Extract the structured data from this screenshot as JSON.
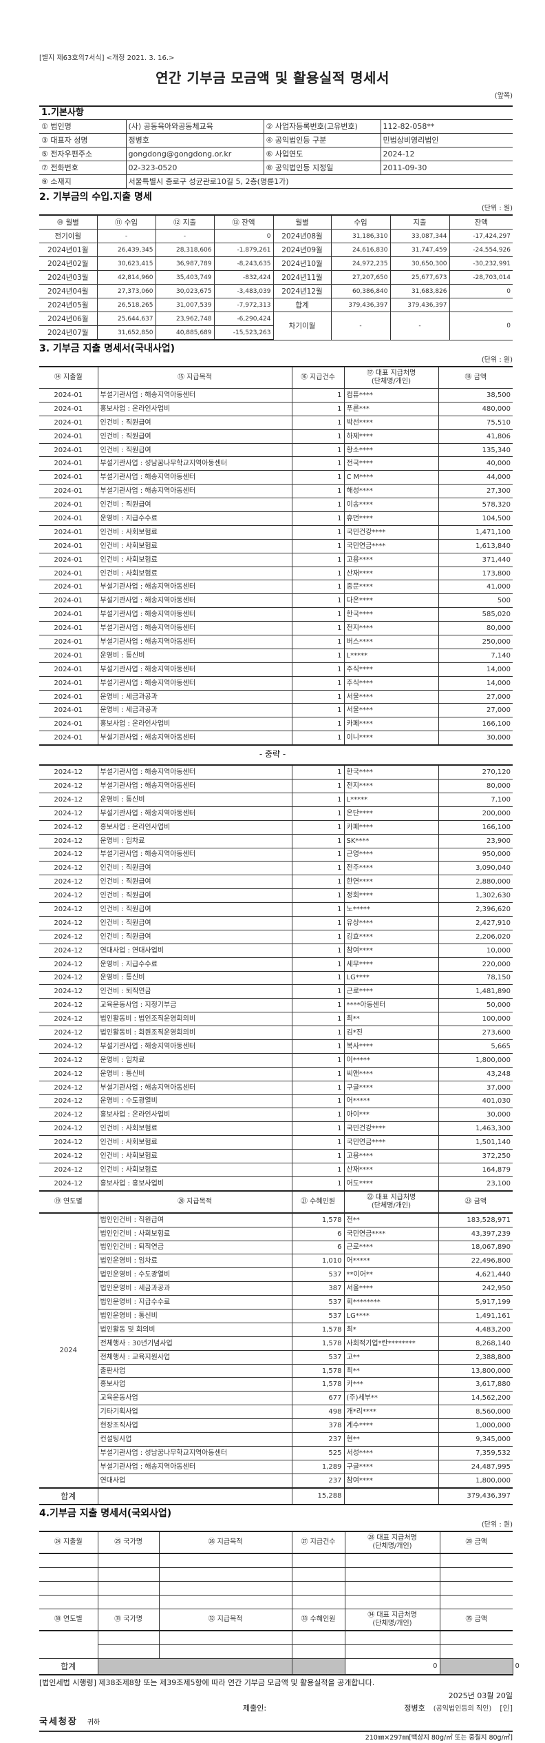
{
  "form_label": "[별지 제63호의7서식] <개정 2021. 3. 16.>",
  "title": "연간 기부금 모금액 및 활용실적 명세서",
  "page_side": "(앞쪽)",
  "unit": "(단위 : 원)",
  "section1": {
    "heading": "1.기본사항",
    "rows": [
      [
        "① 법인명",
        "(사) 공동육아와공동체교육",
        "② 사업자등록번호(고유번호)",
        "112-82-058**"
      ],
      [
        "③ 대표자 성명",
        "정병호",
        "④ 공익법인등 구분",
        "민법상비영리법인"
      ],
      [
        "⑤ 전자우편주소",
        "gongdong@gongdong.or.kr",
        "⑥ 사업연도",
        "2024-12"
      ],
      [
        "⑦ 전화번호",
        "02-323-0520",
        "⑧ 공익법인등 지정일",
        "2011-09-30"
      ]
    ],
    "location": [
      "⑨ 소재지",
      "서울특별시 종로구 성균관로10길 5, 2층(명륜1가)"
    ]
  },
  "section2": {
    "heading": "2. 기부금의 수입.지출 명세",
    "headers": [
      "⑩ 월별",
      "⑪ 수입",
      "⑫ 지출",
      "⑬ 잔액",
      "월별",
      "수입",
      "지출",
      "잔액"
    ],
    "left": [
      [
        "전기이월",
        "-",
        "-",
        "0"
      ],
      [
        "2024년01월",
        "26,439,345",
        "28,318,606",
        "-1,879,261"
      ],
      [
        "2024년02월",
        "30,623,415",
        "36,987,789",
        "-8,243,635"
      ],
      [
        "2024년03월",
        "42,814,960",
        "35,403,749",
        "-832,424"
      ],
      [
        "2024년04월",
        "27,373,060",
        "30,023,675",
        "-3,483,039"
      ],
      [
        "2024년05월",
        "26,518,265",
        "31,007,539",
        "-7,972,313"
      ],
      [
        "2024년06월",
        "25,644,637",
        "23,962,748",
        "-6,290,424"
      ],
      [
        "2024년07월",
        "31,652,850",
        "40,885,689",
        "-15,523,263"
      ]
    ],
    "right": [
      [
        "2024년08월",
        "31,186,310",
        "33,087,344",
        "-17,424,297"
      ],
      [
        "2024년09월",
        "24,616,830",
        "31,747,459",
        "-24,554,926"
      ],
      [
        "2024년10월",
        "24,972,235",
        "30,650,300",
        "-30,232,991"
      ],
      [
        "2024년11월",
        "27,207,650",
        "25,677,673",
        "-28,703,014"
      ],
      [
        "2024년12월",
        "60,386,840",
        "31,683,826",
        "0"
      ]
    ],
    "total": [
      "합계",
      "379,436,397",
      "379,436,397",
      ""
    ],
    "carry_forward": [
      "차기이월",
      "-",
      "-",
      "0"
    ]
  },
  "section3": {
    "heading": "3. 기부금 지출 명세서(국내사업)",
    "headers": [
      "⑭ 지출월",
      "⑮ 지급목적",
      "⑯ 지급건수",
      "⑰ 대표 지급처명\n(단체명/개인)",
      "⑱ 금액"
    ],
    "rows_part1": [
      [
        "2024-01",
        "부설기관사업 : 해송지역아동센터",
        "1",
        "컴퓨****",
        "38,500"
      ],
      [
        "2024-01",
        "홍보사업 : 온라인사업비",
        "1",
        "푸른***",
        "480,000"
      ],
      [
        "2024-01",
        "인건비 : 직원급여",
        "1",
        "박선****",
        "75,510"
      ],
      [
        "2024-01",
        "인건비 : 직원급여",
        "1",
        "하제****",
        "41,806"
      ],
      [
        "2024-01",
        "인건비 : 직원급여",
        "1",
        "황소****",
        "135,340"
      ],
      [
        "2024-01",
        "부설기관사업 : 성남꿈나무학교지역아동센터",
        "1",
        "전국****",
        "40,000"
      ],
      [
        "2024-01",
        "부설기관사업 : 해송지역아동센터",
        "1",
        "C M****",
        "44,000"
      ],
      [
        "2024-01",
        "부설기관사업 : 해송지역아동센터",
        "1",
        "해성****",
        "27,300"
      ],
      [
        "2024-01",
        "인건비 : 직원급여",
        "1",
        "이송****",
        "578,320"
      ],
      [
        "2024-01",
        "운영비 : 지급수수료",
        "1",
        "휴먼****",
        "104,500"
      ],
      [
        "2024-01",
        "인건비 : 사회보험료",
        "1",
        "국민건강****",
        "1,471,100"
      ],
      [
        "2024-01",
        "인건비 : 사회보험료",
        "1",
        "국민연금****",
        "1,613,840"
      ],
      [
        "2024-01",
        "인건비 : 사회보험료",
        "1",
        "고용****",
        "371,440"
      ],
      [
        "2024-01",
        "인건비 : 사회보험료",
        "1",
        "산재****",
        "173,800"
      ],
      [
        "2024-01",
        "부설기관사업 : 해송지역아동센터",
        "1",
        "중문****",
        "41,000"
      ],
      [
        "2024-01",
        "부설기관사업 : 해송지역아동센터",
        "1",
        "다온****",
        "500"
      ],
      [
        "2024-01",
        "부설기관사업 : 해송지역아동센터",
        "1",
        "한국****",
        "585,020"
      ],
      [
        "2024-01",
        "부설기관사업 : 해송지역아동센터",
        "1",
        "전지****",
        "80,000"
      ],
      [
        "2024-01",
        "부설기관사업 : 해송지역아동센터",
        "1",
        "버스****",
        "250,000"
      ],
      [
        "2024-01",
        "운영비 : 통신비",
        "1",
        "L*****",
        "7,140"
      ],
      [
        "2024-01",
        "부설기관사업 : 해송지역아동센터",
        "1",
        "주식****",
        "14,000"
      ],
      [
        "2024-01",
        "부설기관사업 : 해송지역아동센터",
        "1",
        "주식****",
        "14,000"
      ],
      [
        "2024-01",
        "운영비 : 세금과공과",
        "1",
        "서울****",
        "27,000"
      ],
      [
        "2024-01",
        "운영비 : 세금과공과",
        "1",
        "서울****",
        "27,000"
      ],
      [
        "2024-01",
        "홍보사업 : 온라인사업비",
        "1",
        "카페****",
        "166,100"
      ],
      [
        "2024-01",
        "부설기관사업 : 해송지역아동센터",
        "1",
        "이니****",
        "30,000"
      ]
    ],
    "ellipsis": "- 중략 -",
    "rows_part2": [
      [
        "2024-12",
        "부설기관사업 : 해송지역아동센터",
        "1",
        "한국****",
        "270,120"
      ],
      [
        "2024-12",
        "부설기관사업 : 해송지역아동센터",
        "1",
        "전지****",
        "80,000"
      ],
      [
        "2024-12",
        "운영비 : 통신비",
        "1",
        "L*****",
        "7,100"
      ],
      [
        "2024-12",
        "부설기관사업 : 해송지역아동센터",
        "1",
        "온단****",
        "200,000"
      ],
      [
        "2024-12",
        "홍보사업 : 온라인사업비",
        "1",
        "카페****",
        "166,100"
      ],
      [
        "2024-12",
        "운영비 : 임차료",
        "1",
        "SK****",
        "23,900"
      ],
      [
        "2024-12",
        "부설기관사업 : 해송지역아동센터",
        "1",
        "근영****",
        "950,000"
      ],
      [
        "2024-12",
        "인건비 : 직원급여",
        "1",
        "전주****",
        "3,090,040"
      ],
      [
        "2024-12",
        "인건비 : 직원급여",
        "1",
        "한연****",
        "2,880,000"
      ],
      [
        "2024-12",
        "인건비 : 직원급여",
        "1",
        "정회****",
        "1,302,630"
      ],
      [
        "2024-12",
        "인건비 : 직원급여",
        "1",
        "노*****",
        "2,396,620"
      ],
      [
        "2024-12",
        "인건비 : 직원급여",
        "1",
        "유상****",
        "2,427,910"
      ],
      [
        "2024-12",
        "인건비 : 직원급여",
        "1",
        "김효****",
        "2,206,020"
      ],
      [
        "2024-12",
        "연대사업 : 연대사업비",
        "1",
        "참여****",
        "10,000"
      ],
      [
        "2024-12",
        "운영비 : 지급수수료",
        "1",
        "세무****",
        "220,000"
      ],
      [
        "2024-12",
        "운영비 : 통신비",
        "1",
        "LG****",
        "78,150"
      ],
      [
        "2024-12",
        "인건비 : 퇴직연금",
        "1",
        "근로****",
        "1,481,890"
      ],
      [
        "2024-12",
        "교육운동사업 : 지정기부금",
        "1",
        "****아동센터",
        "50,000"
      ],
      [
        "2024-12",
        "법인활동비 : 법인조직운영회의비",
        "1",
        "최**",
        "100,000"
      ],
      [
        "2024-12",
        "법인활동비 : 회원조직운영회의비",
        "1",
        "김*진",
        "273,600"
      ],
      [
        "2024-12",
        "부설기관사업 : 해송지역아동센터",
        "1",
        "복사****",
        "5,665"
      ],
      [
        "2024-12",
        "운영비 : 임차료",
        "1",
        "어*****",
        "1,800,000"
      ],
      [
        "2024-12",
        "운영비 : 통신비",
        "1",
        "씨앤****",
        "43,248"
      ],
      [
        "2024-12",
        "부설기관사업 : 해송지역아동센터",
        "1",
        "구글****",
        "37,000"
      ],
      [
        "2024-12",
        "운영비 : 수도광열비",
        "1",
        "어*****",
        "401,030"
      ],
      [
        "2024-12",
        "홍보사업 : 온라인사업비",
        "1",
        "아이***",
        "30,000"
      ],
      [
        "2024-12",
        "인건비 : 사회보험료",
        "1",
        "국민건강****",
        "1,463,300"
      ],
      [
        "2024-12",
        "인건비 : 사회보험료",
        "1",
        "국민연금****",
        "1,501,140"
      ],
      [
        "2024-12",
        "인건비 : 사회보험료",
        "1",
        "고용****",
        "372,250"
      ],
      [
        "2024-12",
        "인건비 : 사회보험료",
        "1",
        "산재****",
        "164,879"
      ],
      [
        "2024-12",
        "홍보사업 : 홍보사업비",
        "1",
        "어도****",
        "23,100"
      ]
    ],
    "summary_headers": [
      "⑲ 연도별",
      "⑳ 지급목적",
      "㉑ 수혜인원",
      "㉒ 대표 지급처명\n(단체명/개인)",
      "㉓ 금액"
    ],
    "summary_year": "2024",
    "summary_rows": [
      [
        "법인인건비 : 직원급여",
        "1,578",
        "전**",
        "183,528,971"
      ],
      [
        "법인인건비 : 사회보험료",
        "6",
        "국민연금****",
        "43,397,239"
      ],
      [
        "법인인건비 : 퇴직연금",
        "6",
        "근로****",
        "18,067,890"
      ],
      [
        "법인운영비 : 임차료",
        "1,010",
        "어*****",
        "22,496,800"
      ],
      [
        "법인운영비 : 수도광열비",
        "537",
        "**이어**",
        "4,621,440"
      ],
      [
        "법인운영비 : 세금과공과",
        "387",
        "서울****",
        "242,950"
      ],
      [
        "법인운영비 : 지급수수료",
        "537",
        "회********",
        "5,917,199"
      ],
      [
        "법인운영비 : 통신비",
        "537",
        "LG****",
        "1,491,161"
      ],
      [
        "법인활동 및 회의비",
        "1,578",
        "최*",
        "4,483,200"
      ],
      [
        "전체행사 : 30년기념사업",
        "1,578",
        "사회적기업*란********",
        "8,268,140"
      ],
      [
        "전체행사 : 교육지원사업",
        "537",
        "고**",
        "2,388,800"
      ],
      [
        "출판사업",
        "1,578",
        "최**",
        "13,800,000"
      ],
      [
        "홍보사업",
        "1,578",
        "카***",
        "3,617,880"
      ],
      [
        "교육운동사업",
        "677",
        "(주)세부**",
        "14,562,200"
      ],
      [
        "기타기획사업",
        "498",
        "개*리****",
        "8,560,000"
      ],
      [
        "현장조직사업",
        "378",
        "계수****",
        "1,000,000"
      ],
      [
        "컨설팅사업",
        "237",
        "현**",
        "9,345,000"
      ],
      [
        "부설기관사업 : 성남꿈나무학교지역아동센터",
        "525",
        "서성****",
        "7,359,532"
      ],
      [
        "부설기관사업 : 해송지역아동센터",
        "1,289",
        "구글****",
        "24,487,995"
      ],
      [
        "연대사업",
        "237",
        "참여****",
        "1,800,000"
      ]
    ],
    "total": {
      "label": "합계",
      "count": "15,288",
      "amount": "379,436,397"
    }
  },
  "section4": {
    "heading": "4.기부금 지출 명세서(국외사업)",
    "headers": [
      "㉔ 지출월",
      "㉕ 국가명",
      "㉖ 지급목적",
      "㉗ 지급건수",
      "㉘ 대표 지급처명\n(단체명/개인)",
      "㉙ 금액"
    ],
    "summary_headers": [
      "㉚ 연도별",
      "㉛ 국가명",
      "㉜ 지급목적",
      "㉝ 수혜인원",
      "㉞ 대표 지급처명\n(단체명/개인)",
      "㉟ 금액"
    ],
    "total": {
      "label": "합계",
      "count": "0",
      "amount": "0"
    }
  },
  "footer": {
    "law_text": "[법인세법 시행령] 제38조제8항 또는 제39조제5항에 따라 연간 기부금 모금액 및 활용실적을 공개합니다.",
    "date": "2025년  03월  20일",
    "submitter_label": "제출인:",
    "submitter_name": "정병호",
    "submitter_role": "(공익법인등의 직인)",
    "seal": "[인]",
    "recipient": "국세청장",
    "recipient_suffix": "귀하",
    "paper_spec": "210㎜×297㎜[백상지 80g/㎡ 또는 중질지 80g/㎡]"
  }
}
